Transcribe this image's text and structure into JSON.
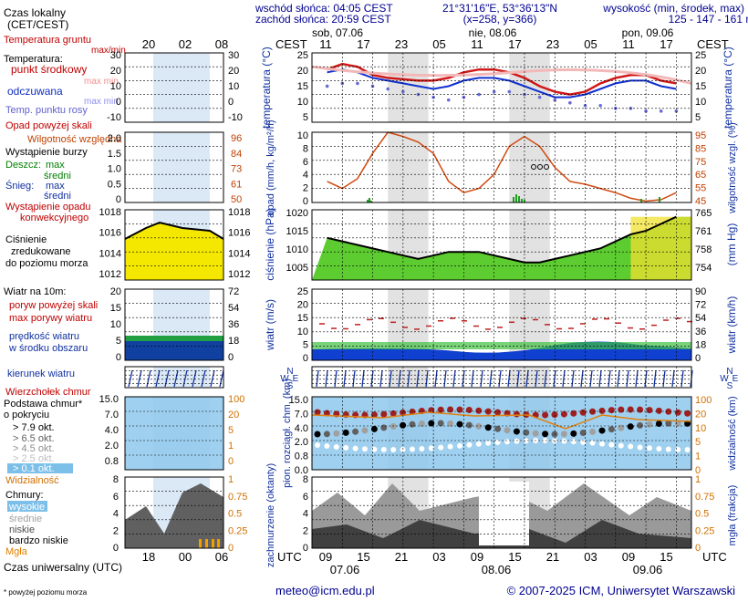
{
  "header": {
    "local_time_label_1": "Czas lokalny",
    "local_time_label_2": "(CET/CEST)",
    "sunrise": "wschód słońca: 04:05 CEST",
    "sunset": "zachód słońca: 20:59 CEST",
    "coords": "21°31'16\"E, 53°36'13\"N",
    "grid": "(x=258, y=366)",
    "elevation_title": "wysokość (min, środek, max)",
    "elevation_values": "125 - 147 - 161 m",
    "cest": "CEST",
    "days": [
      "sob, 07.06",
      "nie, 08.06",
      "pon, 09.06"
    ],
    "top_hours": [
      "11",
      "17",
      "23",
      "05",
      "11",
      "17",
      "23",
      "05",
      "11",
      "17"
    ],
    "left_top_hours": [
      "20",
      "02",
      "08"
    ]
  },
  "legend": {
    "temp_ground": "Temperatura gruntu",
    "max_min": "max/min",
    "temperature": "Temperatura:",
    "mid_point": "punkt środkowy",
    "max_min2": "max min",
    "perceived": "odczuwana",
    "max_min3": "max min",
    "dew_point": "Temp. punktu rosy",
    "precip_over_scale": "Opad powyżej skali",
    "humidity": "Wilgotność względna",
    "storm": "Wystąpienie burzy",
    "rain": "Deszcz:",
    "rain_max": "max",
    "rain_mean": "średni",
    "snow": "Śnieg:",
    "snow_max": "max",
    "snow_mean": "średni",
    "convective": "Wystąpienie opadu",
    "convective2": "konwekcyjnego",
    "pressure1": "Ciśnienie",
    "pressure2": "zredukowane",
    "pressure3": "do poziomu morza",
    "wind_title": "Wiatr na 10m:",
    "gust_over": "poryw powyżej skali",
    "gust_max": "max porywy wiatru",
    "wind_speed": "prędkość wiatru",
    "wind_avg": "w środku obszaru",
    "wind_dir": "kierunek wiatru",
    "cb_top": "Wierzchołek chmur",
    "cloud_base": "Podstawa chmur*",
    "cloud_cover": "o pokryciu",
    "c79": "> 7.9 okt.",
    "c65": "> 6.5 okt.",
    "c45": "> 4.5 okt.",
    "c25": "> 2.5 okt.",
    "c01": "> 0.1 okt.",
    "visibility": "Widzialność",
    "clouds": "Chmury:",
    "high": "wysokie",
    "middle": "średnie",
    "low": "niskie",
    "very_low": "bardzo niskie",
    "fog": "Mgła",
    "utc_label": "Czas uniwersalny (UTC)",
    "footnote": "* powyżej poziomu morza",
    "left_bottom_hours": [
      "18",
      "00",
      "06"
    ]
  },
  "axes": {
    "temperature": "temperatura (°C)",
    "precip": "opad (mm/h, kg/m²/h)",
    "humidity": "wilgotność wzgl. (%)",
    "pressure": "ciśnienie (hPa)",
    "pressure_mmhg": "(mm Hg)",
    "wind": "wiatr (m/s)",
    "wind_kmh": "wiatr (km/h)",
    "cloud_height": "pion. rozciągł. chm. (km)",
    "visibility": "widzialność (km)",
    "cloud_fraction": "zachmurzenie (oktanty)",
    "fog_fraction": "mgła (frakcja)",
    "compass_n": "N",
    "compass_w": "W",
    "compass_e": "E",
    "compass_s": "S"
  },
  "footer": {
    "utc": "UTC",
    "bottom_hours": [
      "09",
      "15",
      "21",
      "03",
      "09",
      "15",
      "21",
      "03",
      "09",
      "15"
    ],
    "dates": [
      "07.06",
      "08.06",
      "09.06"
    ],
    "email": "meteo@icm.edu.pl",
    "copyright": "© 2007-2025 ICM, Uniwersytet Warszawski"
  },
  "ticks": {
    "temp_left": [
      "30",
      "20",
      "10",
      "0",
      "-10"
    ],
    "temp_right": [
      "25",
      "20",
      "15",
      "10",
      "5"
    ],
    "precip": [
      "10",
      "8",
      "6",
      "4",
      "2",
      "0"
    ],
    "humid": [
      "95",
      "85",
      "75",
      "65",
      "55",
      "45"
    ],
    "precip_left": [
      "2.0",
      "1.5",
      "1.0",
      "0.5",
      "0"
    ],
    "humid_left": [
      "96",
      "84",
      "73",
      "61",
      "50"
    ],
    "press_left": [
      "1018",
      "1016",
      "1014",
      "1012"
    ],
    "press": [
      "1020",
      "1015",
      "1010",
      "1005"
    ],
    "press_mm": [
      "765",
      "761",
      "758",
      "754"
    ],
    "wind_left": [
      "20",
      "15",
      "10",
      "5",
      "0"
    ],
    "wind_left_r": [
      "72",
      "54",
      "36",
      "18",
      "0"
    ],
    "wind": [
      "25",
      "20",
      "15",
      "10",
      "5",
      "0"
    ],
    "wind_kmh": [
      "90",
      "72",
      "54",
      "36",
      "18",
      "0"
    ],
    "cloud_left": [
      "15.0",
      "7.0",
      "4.0",
      "2.0",
      "0.8"
    ],
    "cloud_left_r": [
      "100",
      "20",
      "5",
      "1",
      "0"
    ],
    "cloud": [
      "15.0",
      "7.0",
      "4.0",
      "2.0",
      "0.8",
      "0.0"
    ],
    "vis": [
      "100",
      "20",
      "10",
      "5",
      "1",
      "0"
    ],
    "oct_left": [
      "8",
      "6",
      "4",
      "2",
      "0"
    ],
    "frac_left": [
      "1",
      "0.75",
      "0.5",
      "0.25",
      "0"
    ]
  },
  "chart_data": [
    {
      "type": "line",
      "title": "temperatura",
      "x_hours_utc": [
        9,
        12,
        15,
        18,
        21,
        24,
        27,
        30,
        33,
        36,
        39,
        42,
        45,
        48,
        51,
        54,
        57,
        60,
        63,
        66,
        69,
        72,
        75,
        78
      ],
      "series": [
        {
          "name": "punkt środkowy",
          "values": [
            19,
            21,
            20,
            17,
            16,
            15.5,
            15,
            15,
            16,
            18,
            19,
            19,
            18,
            16,
            13,
            11,
            10,
            11,
            14,
            16,
            17,
            17,
            15,
            14
          ]
        },
        {
          "name": "odczuwana",
          "values": [
            18,
            19,
            18,
            16,
            15,
            14,
            13,
            12,
            13,
            15,
            16,
            16,
            15,
            13,
            11,
            9,
            9,
            10,
            12,
            14,
            15,
            15,
            13,
            12
          ]
        },
        {
          "name": "Temp. punktu rosy",
          "values": [
            13,
            14,
            14,
            13,
            12,
            11,
            10,
            9,
            8,
            9,
            10,
            11,
            11,
            10,
            9,
            8,
            7,
            6,
            6,
            5,
            5,
            4,
            4,
            4
          ]
        }
      ],
      "ylim": [
        0,
        25
      ]
    },
    {
      "type": "line",
      "title": "ciśnienie",
      "x_hours_utc": [
        9,
        12,
        15,
        18,
        21,
        24,
        27,
        30,
        33,
        36,
        39,
        42,
        45,
        48,
        51,
        54,
        57,
        60,
        63,
        66,
        69,
        72,
        75,
        78
      ],
      "values": [
        1012,
        1011,
        1010,
        1009,
        1008,
        1007,
        1006,
        1007,
        1008,
        1008,
        1008,
        1007,
        1006,
        1005,
        1005,
        1006,
        1007,
        1008,
        1009,
        1011,
        1013,
        1014,
        1016,
        1018
      ],
      "ylim": [
        1000,
        1020
      ]
    }
  ]
}
